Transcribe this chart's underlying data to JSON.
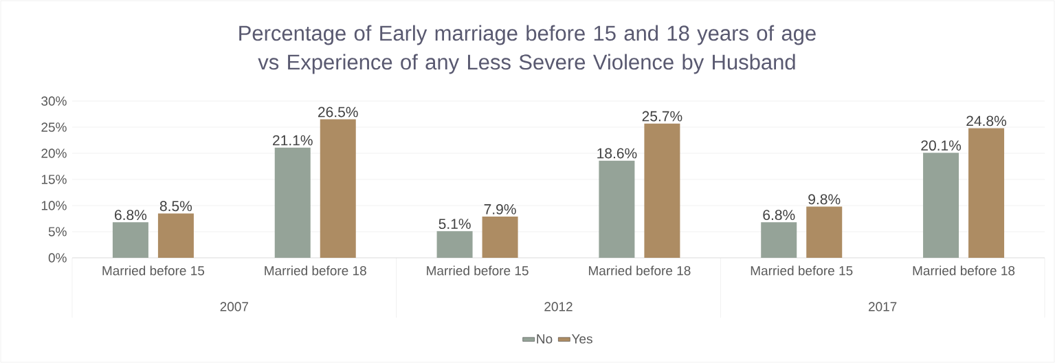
{
  "chart_data": {
    "type": "bar",
    "title": "Percentage of Early marriage before 15 and 18 years of age vs Experience of any Less Severe Violence by Husband",
    "categories": [
      "Married before 15",
      "Married before 18",
      "Married before 15",
      "Married before 18",
      "Married before 15",
      "Married before 18"
    ],
    "annotations": [
      "2007",
      "2012",
      "2017"
    ],
    "series": [
      {
        "name": "No",
        "color": "#95a398",
        "values": [
          6.8,
          21.1,
          5.1,
          18.6,
          6.8,
          20.1
        ],
        "value_labels": [
          "6.8%",
          "21.1%",
          "5.1%",
          "18.6%",
          "6.8%",
          "20.1%"
        ]
      },
      {
        "name": "Yes",
        "color": "#ad8c63",
        "values": [
          8.5,
          26.5,
          7.9,
          25.7,
          9.8,
          24.8
        ],
        "value_labels": [
          "8.5%",
          "26.5%",
          "7.9%",
          "25.7%",
          "9.8%",
          "24.8%"
        ]
      }
    ],
    "ylim": [
      0,
      30
    ],
    "yticks": [
      {
        "value": 0,
        "label": "0%"
      },
      {
        "value": 5,
        "label": "5%"
      },
      {
        "value": 10,
        "label": "10%"
      },
      {
        "value": 15,
        "label": "15%"
      },
      {
        "value": 20,
        "label": "20%"
      },
      {
        "value": 25,
        "label": "25%"
      },
      {
        "value": 30,
        "label": "30%"
      }
    ],
    "grid": "y",
    "legend": "bottom"
  }
}
